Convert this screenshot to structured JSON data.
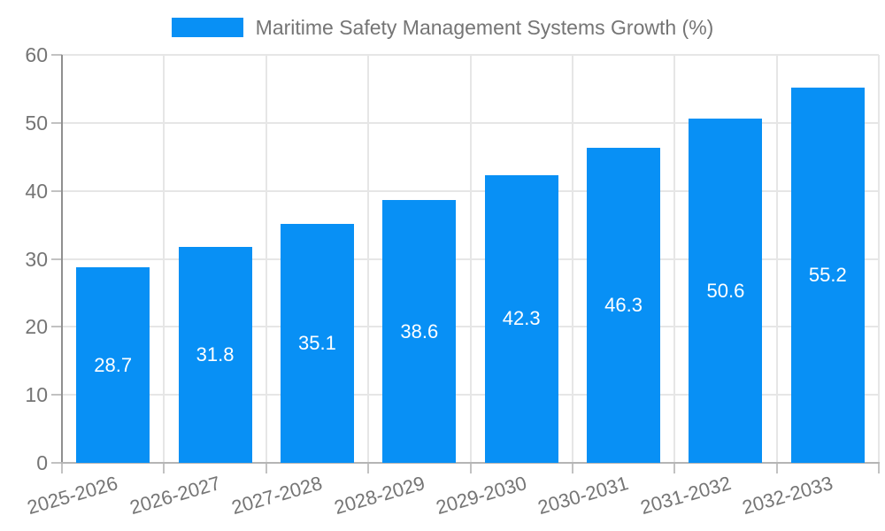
{
  "legend": {
    "label": "Maritime Safety Management Systems Growth (%)"
  },
  "colors": {
    "bar": "#0890f5",
    "grid": "#e6e6e6",
    "y_axis_line": "#8f8f8f",
    "x_axis_line": "#b5b5b5",
    "tick": "#c2c2c2",
    "text": "#757575",
    "value_label": "#ffffff",
    "background": "#ffffff"
  },
  "chart_data": {
    "type": "bar",
    "title": "Maritime Safety Management Systems Growth (%)",
    "categories": [
      "2025-2026",
      "2026-2027",
      "2027-2028",
      "2028-2029",
      "2029-2030",
      "2030-2031",
      "2031-2032",
      "2032-2033"
    ],
    "values": [
      28.7,
      31.8,
      35.1,
      38.6,
      42.3,
      46.3,
      50.6,
      55.2
    ],
    "value_labels": [
      "28.7",
      "31.8",
      "35.1",
      "38.6",
      "42.3",
      "46.3",
      "50.6",
      "55.2"
    ],
    "xlabel": "",
    "ylabel": "",
    "ylim": [
      0,
      60
    ],
    "ytick_interval": 10,
    "ytick_labels": [
      "0",
      "10",
      "20",
      "30",
      "40",
      "50",
      "60"
    ],
    "grid": true,
    "legend_position": "top-center",
    "value_label_position": "inside-center",
    "x_label_rotation_deg": -16
  }
}
